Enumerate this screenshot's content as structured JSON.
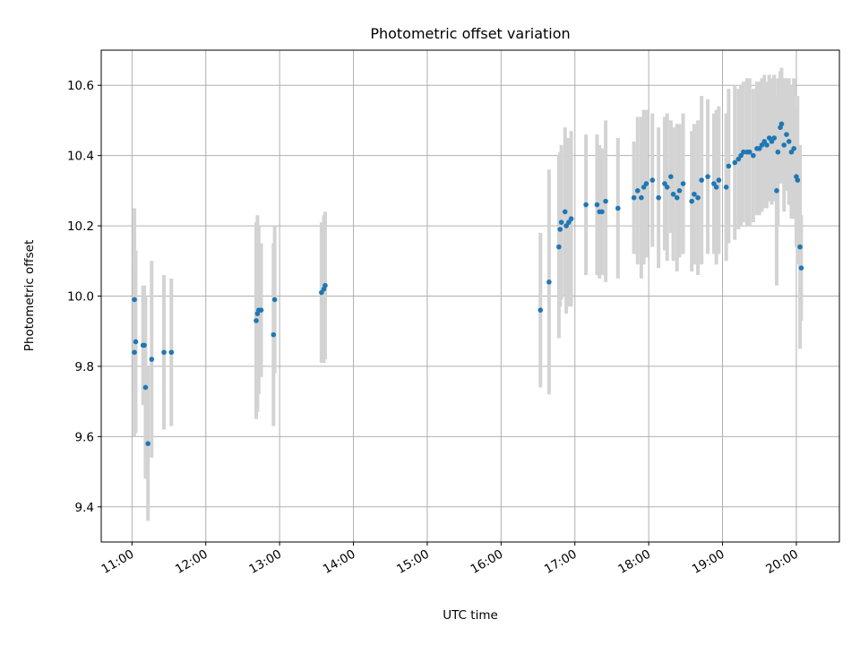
{
  "chart_data": {
    "type": "scatter",
    "title": "Photometric offset variation",
    "xlabel": "UTC time",
    "ylabel": "Photometric offset",
    "ylim": [
      9.3,
      10.7
    ],
    "xlim": [
      "10:35",
      "20:35"
    ],
    "yticks": [
      9.4,
      9.6,
      9.8,
      10.0,
      10.2,
      10.4,
      10.6
    ],
    "xticks": [
      "11:00",
      "12:00",
      "13:00",
      "14:00",
      "15:00",
      "16:00",
      "17:00",
      "18:00",
      "19:00",
      "20:00"
    ],
    "grid": true,
    "marker_color": "#1f77b4",
    "errorbar_color": "#d3d3d3",
    "series": [
      {
        "x": [
          "11:02",
          "11:02",
          "11:03",
          "11:09",
          "11:10",
          "11:11",
          "11:13",
          "11:16",
          "11:26",
          "11:32",
          "12:41",
          "12:42",
          "12:43",
          "12:45",
          "12:55",
          "12:56",
          "13:34",
          "13:36",
          "13:37",
          "16:32",
          "16:39",
          "16:47",
          "16:48",
          "16:49",
          "16:52",
          "16:53",
          "16:55",
          "16:57",
          "17:09",
          "17:18",
          "17:20",
          "17:22",
          "17:25",
          "17:35",
          "17:48",
          "17:51",
          "17:54",
          "17:56",
          "17:58",
          "18:03",
          "18:08",
          "18:13",
          "18:15",
          "18:18",
          "18:20",
          "18:23",
          "18:25",
          "18:28",
          "18:35",
          "18:37",
          "18:40",
          "18:43",
          "18:48",
          "18:53",
          "18:55",
          "18:57",
          "19:03",
          "19:05",
          "19:10",
          "19:13",
          "19:15",
          "19:17",
          "19:20",
          "19:22",
          "19:25",
          "19:28",
          "19:30",
          "19:32",
          "19:34",
          "19:36",
          "19:38",
          "19:40",
          "19:42",
          "19:44",
          "19:45",
          "19:47",
          "19:48",
          "19:50",
          "19:52",
          "19:54",
          "19:56",
          "19:58",
          "20:00",
          "20:01",
          "20:03",
          "20:04"
        ],
        "y": [
          9.99,
          9.84,
          9.87,
          9.86,
          9.86,
          9.74,
          9.58,
          9.82,
          9.84,
          9.84,
          9.93,
          9.95,
          9.96,
          9.96,
          9.89,
          9.99,
          10.01,
          10.02,
          10.03,
          9.96,
          10.04,
          10.14,
          10.19,
          10.21,
          10.24,
          10.2,
          10.21,
          10.22,
          10.26,
          10.26,
          10.24,
          10.24,
          10.27,
          10.25,
          10.28,
          10.3,
          10.28,
          10.31,
          10.32,
          10.33,
          10.28,
          10.32,
          10.31,
          10.34,
          10.29,
          10.28,
          10.3,
          10.32,
          10.27,
          10.29,
          10.28,
          10.33,
          10.34,
          10.32,
          10.31,
          10.33,
          10.31,
          10.37,
          10.38,
          10.39,
          10.4,
          10.41,
          10.41,
          10.41,
          10.4,
          10.42,
          10.42,
          10.43,
          10.44,
          10.43,
          10.45,
          10.44,
          10.45,
          10.3,
          10.41,
          10.48,
          10.49,
          10.43,
          10.46,
          10.44,
          10.41,
          10.42,
          10.34,
          10.33,
          10.14,
          10.08
        ],
        "yerr": [
          0.26,
          0.24,
          0.26,
          0.17,
          0.17,
          0.26,
          0.22,
          0.28,
          0.22,
          0.21,
          0.28,
          0.28,
          0.24,
          0.19,
          0.26,
          0.21,
          0.2,
          0.21,
          0.21,
          0.22,
          0.32,
          0.26,
          0.22,
          0.22,
          0.24,
          0.25,
          0.24,
          0.25,
          0.2,
          0.2,
          0.19,
          0.18,
          0.23,
          0.2,
          0.16,
          0.21,
          0.23,
          0.22,
          0.21,
          0.19,
          0.2,
          0.19,
          0.21,
          0.16,
          0.19,
          0.21,
          0.19,
          0.2,
          0.2,
          0.2,
          0.22,
          0.24,
          0.22,
          0.2,
          0.22,
          0.21,
          0.21,
          0.22,
          0.22,
          0.2,
          0.2,
          0.2,
          0.21,
          0.21,
          0.19,
          0.19,
          0.19,
          0.19,
          0.19,
          0.18,
          0.18,
          0.18,
          0.18,
          0.27,
          0.21,
          0.16,
          0.16,
          0.19,
          0.16,
          0.18,
          0.19,
          0.2,
          0.2,
          0.24,
          0.29,
          0.15
        ]
      }
    ]
  }
}
